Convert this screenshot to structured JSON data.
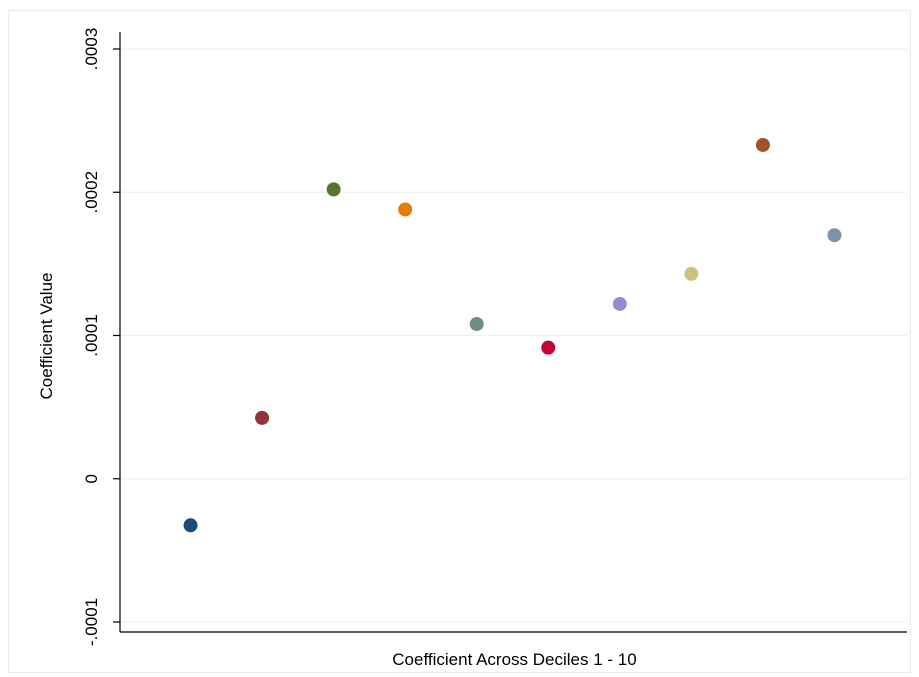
{
  "chart_data": {
    "type": "scatter",
    "title": "",
    "xlabel": "Coefficient Across Deciles 1 - 10",
    "ylabel": "Coefficient Value",
    "ylim": [
      -0.0001,
      0.0003
    ],
    "xlim": [
      0,
      11
    ],
    "yticks": [
      {
        "value": -0.0001,
        "label": "-.0001"
      },
      {
        "value": 0,
        "label": "0"
      },
      {
        "value": 0.0001,
        "label": ".0001"
      },
      {
        "value": 0.0002,
        "label": ".0002"
      },
      {
        "value": 0.0003,
        "label": ".0003"
      }
    ],
    "grid": true,
    "legend": "none",
    "points": [
      {
        "x": 1,
        "y": -3.25e-05,
        "color": "#1a4a7a"
      },
      {
        "x": 2,
        "y": 4.25e-05,
        "color": "#90353b"
      },
      {
        "x": 3,
        "y": 0.000202,
        "color": "#55752f"
      },
      {
        "x": 4,
        "y": 0.000188,
        "color": "#e37e00"
      },
      {
        "x": 5,
        "y": 0.000108,
        "color": "#6e8e84"
      },
      {
        "x": 6,
        "y": 9.15e-05,
        "color": "#c10534"
      },
      {
        "x": 7,
        "y": 0.000122,
        "color": "#938dd2"
      },
      {
        "x": 8,
        "y": 0.000143,
        "color": "#cac27e"
      },
      {
        "x": 9,
        "y": 0.000233,
        "color": "#a0522d"
      },
      {
        "x": 10,
        "y": 0.00017,
        "color": "#7b92a8"
      }
    ]
  }
}
